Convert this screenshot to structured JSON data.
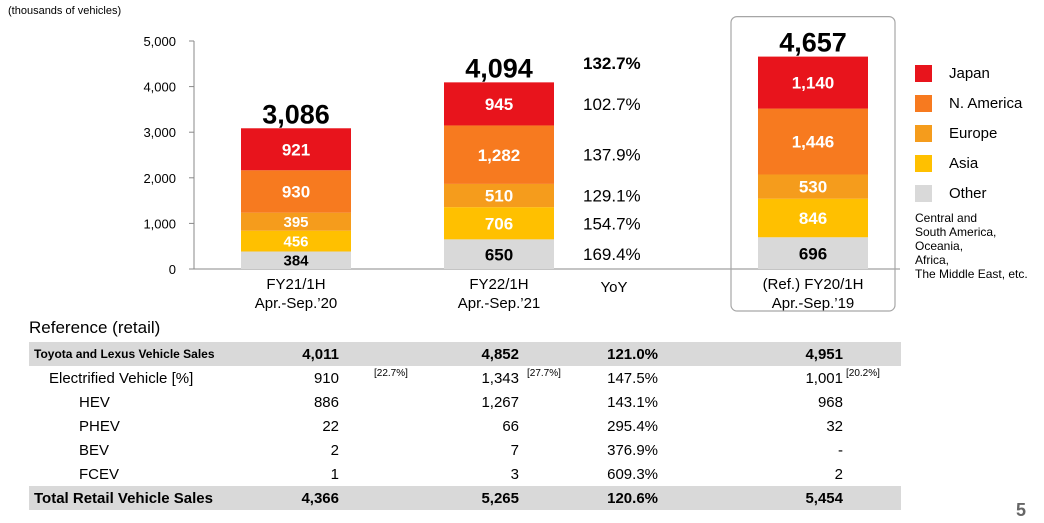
{
  "chart_data": {
    "type": "bar",
    "stacked": true,
    "unit_label": "(thousands of vehicles)",
    "ylim": [
      0,
      5000
    ],
    "yticks": [
      "0",
      "1,000",
      "2,000",
      "3,000",
      "4,000",
      "5,000"
    ],
    "categories": [
      {
        "line1": "FY21/1H",
        "line2": "Apr.-Sep.’20"
      },
      {
        "line1": "FY22/1H",
        "line2": "Apr.-Sep.’21"
      },
      {
        "line1": "(Ref.) FY20/1H",
        "line2": "Apr.-Sep.’19"
      }
    ],
    "totals": [
      "3,086",
      "4,094",
      "4,657"
    ],
    "series": [
      {
        "name": "Other",
        "color": "#d9d9d9",
        "values": [
          384,
          650,
          696
        ],
        "labels": [
          "384",
          "650",
          "696"
        ],
        "label_color": "#000000"
      },
      {
        "name": "Asia",
        "color": "#ffc000",
        "values": [
          456,
          706,
          846
        ],
        "labels": [
          "456",
          "706",
          "846"
        ],
        "label_color": "#ffffff"
      },
      {
        "name": "Europe",
        "color": "#f59c1c",
        "values": [
          395,
          510,
          530
        ],
        "labels": [
          "395",
          "510",
          "530"
        ],
        "label_color": "#ffffff"
      },
      {
        "name": "N. America",
        "color": "#f77a1f",
        "values": [
          930,
          1282,
          1446
        ],
        "labels": [
          "930",
          "1,282",
          "1,446"
        ],
        "label_color": "#ffffff"
      },
      {
        "name": "Japan",
        "color": "#e8141c",
        "values": [
          921,
          945,
          1140
        ],
        "labels": [
          "921",
          "945",
          "1,140"
        ],
        "label_color": "#ffffff"
      }
    ],
    "yoy": {
      "header": "YoY",
      "total": "132.7%",
      "values": [
        "169.4%",
        "154.7%",
        "129.1%",
        "137.9%",
        "102.7%"
      ]
    },
    "legend_note": "Central and\nSouth America,\nOceania,\nAfrica,\nThe Middle East, etc."
  },
  "reference": {
    "title": "Reference (retail)",
    "rows": [
      {
        "label": "Toyota and Lexus Vehicle Sales",
        "a": "4,011",
        "b": "4,852",
        "c": "121.0%",
        "d": "4,951",
        "shaded": true,
        "bold": true,
        "indent": 0
      },
      {
        "label": "Electrified Vehicle [%]",
        "a": "910",
        "a_share": "[22.7%]",
        "b": "1,343",
        "b_share": "[27.7%]",
        "c": "147.5%",
        "d": "1,001",
        "d_share": "[20.2%]",
        "shaded": false,
        "bold": false,
        "indent": 1
      },
      {
        "label": "HEV",
        "a": "886",
        "b": "1,267",
        "c": "143.1%",
        "d": "968",
        "shaded": false,
        "bold": false,
        "indent": 2
      },
      {
        "label": "PHEV",
        "a": "22",
        "b": "66",
        "c": "295.4%",
        "d": "32",
        "shaded": false,
        "bold": false,
        "indent": 2
      },
      {
        "label": "BEV",
        "a": "2",
        "b": "7",
        "c": "376.9%",
        "d": "-",
        "shaded": false,
        "bold": false,
        "indent": 2
      },
      {
        "label": "FCEV",
        "a": "1",
        "b": "3",
        "c": "609.3%",
        "d": "2",
        "shaded": false,
        "bold": false,
        "indent": 2
      },
      {
        "label": "Total Retail Vehicle Sales",
        "a": "4,366",
        "b": "5,265",
        "c": "120.6%",
        "d": "5,454",
        "shaded": true,
        "bold": true,
        "indent": 0
      }
    ]
  },
  "page_number": "5"
}
